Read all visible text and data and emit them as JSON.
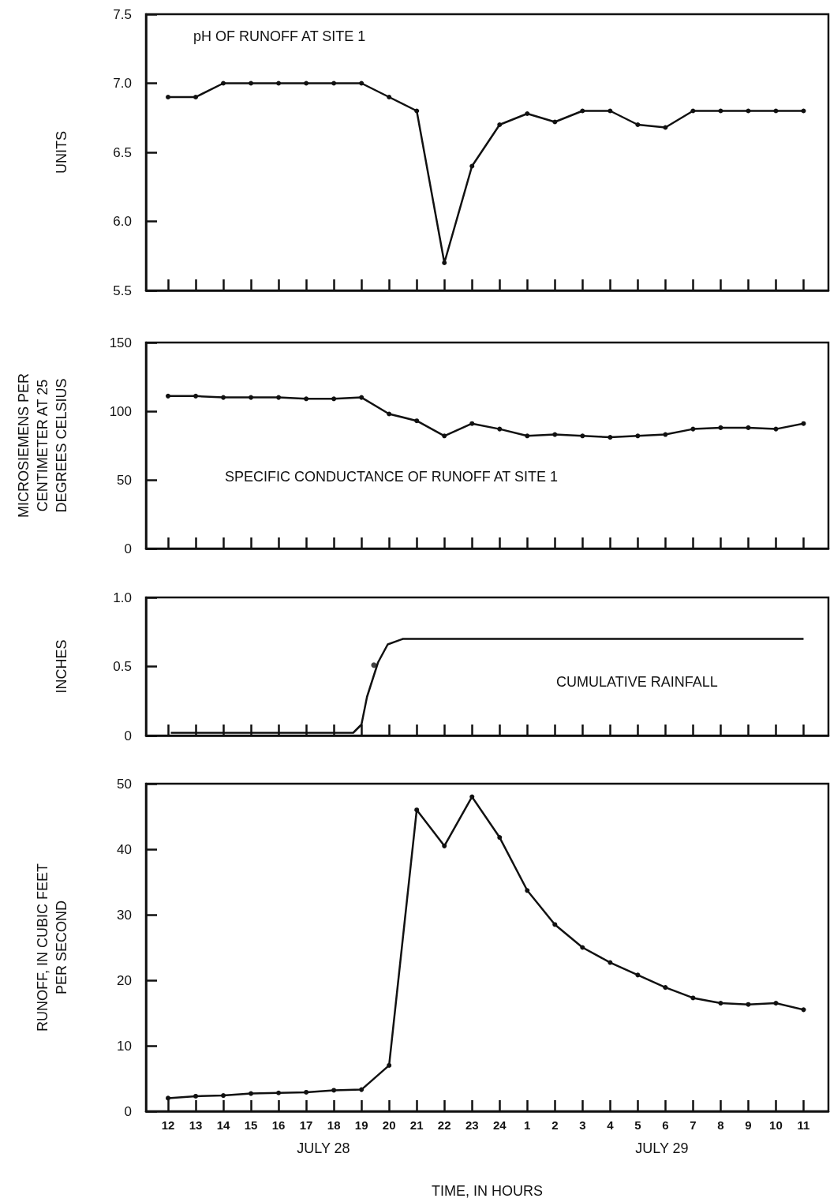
{
  "chart_data": [
    {
      "type": "line",
      "title": "pH OF RUNOFF AT SITE 1",
      "ylabel": "UNITS",
      "marker": "circle",
      "line_style": "solid",
      "tick_labels": "y",
      "xlim": [
        "--07-28T11:12",
        "--07-29T11:54"
      ],
      "xticks": [
        {
          "value": "--07-28T12:00",
          "label": null
        },
        {
          "value": "--07-28T13:00",
          "label": null
        },
        {
          "value": "--07-28T14:00",
          "label": null
        },
        {
          "value": "--07-28T15:00",
          "label": null
        },
        {
          "value": "--07-28T16:00",
          "label": null
        },
        {
          "value": "--07-28T17:00",
          "label": null
        },
        {
          "value": "--07-28T18:00",
          "label": null
        },
        {
          "value": "--07-28T19:00",
          "label": null
        },
        {
          "value": "--07-28T20:00",
          "label": null
        },
        {
          "value": "--07-28T21:00",
          "label": null
        },
        {
          "value": "--07-28T22:00",
          "label": null
        },
        {
          "value": "--07-28T23:00",
          "label": null
        },
        {
          "value": "--07-29T00:00",
          "label": null
        },
        {
          "value": "--07-29T01:00",
          "label": null
        },
        {
          "value": "--07-29T02:00",
          "label": null
        },
        {
          "value": "--07-29T03:00",
          "label": null
        },
        {
          "value": "--07-29T04:00",
          "label": null
        },
        {
          "value": "--07-29T05:00",
          "label": null
        },
        {
          "value": "--07-29T06:00",
          "label": null
        },
        {
          "value": "--07-29T07:00",
          "label": null
        },
        {
          "value": "--07-29T08:00",
          "label": null
        },
        {
          "value": "--07-29T09:00",
          "label": null
        },
        {
          "value": "--07-29T10:00",
          "label": null
        },
        {
          "value": "--07-29T11:00",
          "label": null
        }
      ],
      "ylim": [
        5.5,
        7.5
      ],
      "yticks": [
        5.5,
        {
          "value": 6,
          "label": "6.0"
        },
        6.5,
        {
          "value": 7,
          "label": "7.0"
        },
        7.5
      ],
      "x": [
        "--07-28T12:00",
        "--07-28T13:00",
        "--07-28T14:00",
        "--07-28T15:00",
        "--07-28T16:00",
        "--07-28T17:00",
        "--07-28T18:00",
        "--07-28T19:00",
        "--07-28T20:00",
        "--07-28T21:00",
        "--07-28T22:00",
        "--07-28T23:00",
        "--07-29T00:00",
        "--07-29T01:00",
        "--07-29T02:00",
        "--07-29T03:00",
        "--07-29T04:00",
        "--07-29T05:00",
        "--07-29T06:00",
        "--07-29T07:00",
        "--07-29T08:00",
        "--07-29T09:00",
        "--07-29T10:00",
        "--07-29T11:00"
      ],
      "series": [
        {
          "color": "#111111",
          "values": [
            6.9,
            6.9,
            7.0,
            7.0,
            7.0,
            7.0,
            7.0,
            7.0,
            6.9,
            6.8,
            5.7,
            6.4,
            6.7,
            6.78,
            6.72,
            6.8,
            6.8,
            6.7,
            6.68,
            6.8,
            6.8,
            6.8,
            6.8,
            6.8
          ]
        }
      ]
    },
    {
      "type": "line",
      "title": "SPECIFIC CONDUCTANCE OF RUNOFF AT SITE 1",
      "ylabel": "MICROSIEMENS PER\nCENTIMETER AT 25\nDEGREES CELSIUS",
      "marker": "circle",
      "line_style": "solid",
      "tick_labels": "y",
      "xlim": [
        "--07-28T11:12",
        "--07-29T11:54"
      ],
      "xticks": [
        {
          "value": "--07-28T12:00",
          "label": null
        },
        {
          "value": "--07-28T13:00",
          "label": null
        },
        {
          "value": "--07-28T14:00",
          "label": null
        },
        {
          "value": "--07-28T15:00",
          "label": null
        },
        {
          "value": "--07-28T16:00",
          "label": null
        },
        {
          "value": "--07-28T17:00",
          "label": null
        },
        {
          "value": "--07-28T18:00",
          "label": null
        },
        {
          "value": "--07-28T19:00",
          "label": null
        },
        {
          "value": "--07-28T20:00",
          "label": null
        },
        {
          "value": "--07-28T21:00",
          "label": null
        },
        {
          "value": "--07-28T22:00",
          "label": null
        },
        {
          "value": "--07-28T23:00",
          "label": null
        },
        {
          "value": "--07-29T00:00",
          "label": null
        },
        {
          "value": "--07-29T01:00",
          "label": null
        },
        {
          "value": "--07-29T02:00",
          "label": null
        },
        {
          "value": "--07-29T03:00",
          "label": null
        },
        {
          "value": "--07-29T04:00",
          "label": null
        },
        {
          "value": "--07-29T05:00",
          "label": null
        },
        {
          "value": "--07-29T06:00",
          "label": null
        },
        {
          "value": "--07-29T07:00",
          "label": null
        },
        {
          "value": "--07-29T08:00",
          "label": null
        },
        {
          "value": "--07-29T09:00",
          "label": null
        },
        {
          "value": "--07-29T10:00",
          "label": null
        },
        {
          "value": "--07-29T11:00",
          "label": null
        }
      ],
      "ylim": [
        0,
        150
      ],
      "yticks": [
        0,
        50,
        100,
        150
      ],
      "x": [
        "--07-28T12:00",
        "--07-28T13:00",
        "--07-28T14:00",
        "--07-28T15:00",
        "--07-28T16:00",
        "--07-28T17:00",
        "--07-28T18:00",
        "--07-28T19:00",
        "--07-28T20:00",
        "--07-28T21:00",
        "--07-28T22:00",
        "--07-28T23:00",
        "--07-29T00:00",
        "--07-29T01:00",
        "--07-29T02:00",
        "--07-29T03:00",
        "--07-29T04:00",
        "--07-29T05:00",
        "--07-29T06:00",
        "--07-29T07:00",
        "--07-29T08:00",
        "--07-29T09:00",
        "--07-29T10:00",
        "--07-29T11:00"
      ],
      "series": [
        {
          "color": "#111111",
          "values": [
            111,
            111,
            110,
            110,
            110,
            109,
            109,
            110,
            98,
            93,
            82,
            91,
            87,
            82,
            83,
            82,
            81,
            82,
            83,
            87,
            88,
            88,
            87,
            91
          ]
        }
      ]
    },
    {
      "type": "line",
      "title": "CUMULATIVE RAINFALL",
      "ylabel": "INCHES",
      "marker": "none",
      "line_style": "solid",
      "tick_labels": "y",
      "xlim": [
        "--07-28T11:12",
        "--07-29T11:54"
      ],
      "xticks": [
        {
          "value": "--07-28T12:00",
          "label": null
        },
        {
          "value": "--07-28T13:00",
          "label": null
        },
        {
          "value": "--07-28T14:00",
          "label": null
        },
        {
          "value": "--07-28T15:00",
          "label": null
        },
        {
          "value": "--07-28T16:00",
          "label": null
        },
        {
          "value": "--07-28T17:00",
          "label": null
        },
        {
          "value": "--07-28T18:00",
          "label": null
        },
        {
          "value": "--07-28T19:00",
          "label": null
        },
        {
          "value": "--07-28T20:00",
          "label": null
        },
        {
          "value": "--07-28T21:00",
          "label": null
        },
        {
          "value": "--07-28T22:00",
          "label": null
        },
        {
          "value": "--07-28T23:00",
          "label": null
        },
        {
          "value": "--07-29T00:00",
          "label": null
        },
        {
          "value": "--07-29T01:00",
          "label": null
        },
        {
          "value": "--07-29T02:00",
          "label": null
        },
        {
          "value": "--07-29T03:00",
          "label": null
        },
        {
          "value": "--07-29T04:00",
          "label": null
        },
        {
          "value": "--07-29T05:00",
          "label": null
        },
        {
          "value": "--07-29T06:00",
          "label": null
        },
        {
          "value": "--07-29T07:00",
          "label": null
        },
        {
          "value": "--07-29T08:00",
          "label": null
        },
        {
          "value": "--07-29T09:00",
          "label": null
        },
        {
          "value": "--07-29T10:00",
          "label": null
        },
        {
          "value": "--07-29T11:00",
          "label": null
        }
      ],
      "ylim": [
        0,
        1
      ],
      "yticks": [
        0,
        0.5,
        {
          "value": 1,
          "label": "1.0"
        }
      ],
      "series": [
        {
          "color": "#111111",
          "x": [
            "--07-28T12:06",
            "--07-28T18:42",
            "--07-28T19:00",
            "--07-28T19:12",
            "--07-28T19:36",
            "--07-28T19:57",
            "--07-28T20:30",
            "--07-28T21:00",
            "--07-29T11:00"
          ],
          "values": [
            0.02,
            0.02,
            0.08,
            0.28,
            0.53,
            0.66,
            0.7,
            0.7,
            0.7
          ]
        },
        {
          "type": "scatter",
          "marker": "circle",
          "color": "#111111",
          "x": [
            "--07-28T19:27"
          ],
          "values": [
            0.51
          ]
        }
      ]
    },
    {
      "type": "line",
      "ylabel": "RUNOFF, IN CUBIC FEET\nPER SECOND",
      "xlabel": "TIME, IN HOURS",
      "marker": "circle",
      "line_style": "solid",
      "annotations": [
        "JULY 28",
        "JULY 29"
      ],
      "xlim": [
        "--07-28T11:12",
        "--07-29T11:54"
      ],
      "xticks": [
        {
          "value": "--07-28T12:00",
          "label": "12"
        },
        {
          "value": "--07-28T13:00",
          "label": "13"
        },
        {
          "value": "--07-28T14:00",
          "label": "14"
        },
        {
          "value": "--07-28T15:00",
          "label": "15"
        },
        {
          "value": "--07-28T16:00",
          "label": "16"
        },
        {
          "value": "--07-28T17:00",
          "label": "17"
        },
        {
          "value": "--07-28T18:00",
          "label": "18"
        },
        {
          "value": "--07-28T19:00",
          "label": "19"
        },
        {
          "value": "--07-28T20:00",
          "label": "20"
        },
        {
          "value": "--07-28T21:00",
          "label": "21"
        },
        {
          "value": "--07-28T22:00",
          "label": "22"
        },
        {
          "value": "--07-28T23:00",
          "label": "23"
        },
        {
          "value": "--07-29T00:00",
          "label": "24"
        },
        {
          "value": "--07-29T01:00",
          "label": "1"
        },
        {
          "value": "--07-29T02:00",
          "label": "2"
        },
        {
          "value": "--07-29T03:00",
          "label": "3"
        },
        {
          "value": "--07-29T04:00",
          "label": "4"
        },
        {
          "value": "--07-29T05:00",
          "label": "5"
        },
        {
          "value": "--07-29T06:00",
          "label": "6"
        },
        {
          "value": "--07-29T07:00",
          "label": "7"
        },
        {
          "value": "--07-29T08:00",
          "label": "8"
        },
        {
          "value": "--07-29T09:00",
          "label": "9"
        },
        {
          "value": "--07-29T10:00",
          "label": "10"
        },
        {
          "value": "--07-29T11:00",
          "label": "11"
        }
      ],
      "ylim": [
        0,
        50
      ],
      "yticks": [
        0,
        10,
        20,
        30,
        40,
        50
      ],
      "x": [
        "--07-28T12:00",
        "--07-28T13:00",
        "--07-28T14:00",
        "--07-28T15:00",
        "--07-28T16:00",
        "--07-28T17:00",
        "--07-28T18:00",
        "--07-28T19:00",
        "--07-28T20:00",
        "--07-28T21:00",
        "--07-28T22:00",
        "--07-28T23:00",
        "--07-29T00:00",
        "--07-29T01:00",
        "--07-29T02:00",
        "--07-29T03:00",
        "--07-29T04:00",
        "--07-29T05:00",
        "--07-29T06:00",
        "--07-29T07:00",
        "--07-29T08:00",
        "--07-29T09:00",
        "--07-29T10:00",
        "--07-29T11:00"
      ],
      "series": [
        {
          "color": "#111111",
          "values": [
            2.0,
            2.3,
            2.4,
            2.7,
            2.8,
            2.9,
            3.2,
            3.3,
            7,
            46,
            40.5,
            48,
            41.8,
            33.7,
            28.5,
            25,
            22.7,
            20.8,
            18.9,
            17.3,
            16.5,
            16.3,
            16.5,
            15.5
          ]
        }
      ]
    }
  ]
}
